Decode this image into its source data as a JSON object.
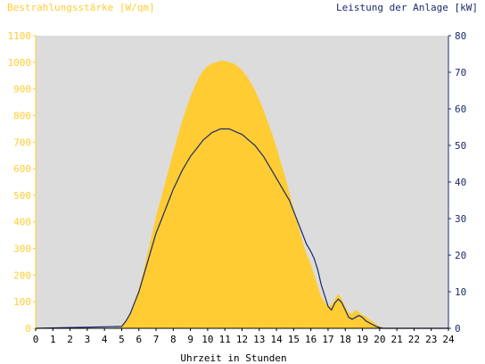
{
  "chart_data": {
    "type": "area",
    "left_axis_label": "Bestrahlungsstärke [W/qm]",
    "right_axis_label": "Leistung der Anlage [kW]",
    "xlabel": "Uhrzeit in Stunden",
    "xlim": [
      0,
      24
    ],
    "x_ticks": [
      "0",
      "1",
      "2",
      "3",
      "4",
      "5",
      "6",
      "7",
      "8",
      "9",
      "10",
      "11",
      "12",
      "13",
      "14",
      "15",
      "16",
      "17",
      "18",
      "19",
      "20",
      "21",
      "22",
      "23",
      "24"
    ],
    "left_ylim": [
      0,
      1100
    ],
    "left_ticks": [
      "0",
      "100",
      "200",
      "300",
      "400",
      "500",
      "600",
      "700",
      "800",
      "900",
      "1000",
      "1100"
    ],
    "right_ylim": [
      0,
      80
    ],
    "right_ticks": [
      "0",
      "10",
      "20",
      "30",
      "40",
      "50",
      "60",
      "70",
      "80"
    ],
    "grid": false,
    "colors": {
      "irradiance": "#ffcc33",
      "power": "#1a2a6c",
      "plot_background": "#dcdcdc"
    },
    "series": [
      {
        "axis": "left",
        "style": "area",
        "x": [
          0,
          4.8,
          5,
          5.25,
          5.5,
          5.75,
          6,
          6.25,
          6.5,
          6.75,
          7,
          7.25,
          7.5,
          7.75,
          8,
          8.25,
          8.5,
          8.75,
          9,
          9.25,
          9.5,
          9.75,
          10,
          10.25,
          10.5,
          10.75,
          11,
          11.25,
          11.5,
          11.75,
          12,
          12.25,
          12.5,
          12.75,
          13,
          13.25,
          13.5,
          13.75,
          14,
          14.25,
          14.5,
          14.75,
          15,
          15.25,
          15.5,
          15.75,
          16,
          16.2,
          16.4,
          16.6,
          16.8,
          17,
          17.2,
          17.4,
          17.6,
          17.8,
          18,
          18.2,
          18.4,
          18.6,
          18.8,
          19,
          19.2,
          19.4,
          19.6,
          19.8,
          20,
          20.2,
          20.4,
          24
        ],
        "values": [
          0,
          0,
          10,
          30,
          60,
          100,
          150,
          210,
          280,
          350,
          420,
          480,
          540,
          600,
          660,
          720,
          775,
          825,
          870,
          910,
          945,
          970,
          985,
          995,
          1000,
          1005,
          1005,
          1000,
          995,
          985,
          970,
          950,
          925,
          895,
          860,
          820,
          775,
          730,
          680,
          625,
          570,
          510,
          450,
          390,
          330,
          280,
          240,
          200,
          160,
          120,
          100,
          80,
          90,
          110,
          130,
          110,
          80,
          60,
          55,
          70,
          60,
          50,
          45,
          35,
          25,
          15,
          8,
          3,
          0,
          0
        ]
      },
      {
        "axis": "right",
        "style": "line",
        "x": [
          0,
          5,
          5.25,
          5.5,
          5.75,
          6,
          6.25,
          6.5,
          6.75,
          7,
          7.25,
          7.5,
          7.75,
          8,
          8.25,
          8.5,
          8.75,
          9,
          9.25,
          9.5,
          9.75,
          10,
          10.25,
          10.5,
          10.75,
          11,
          11.25,
          11.5,
          11.75,
          12,
          12.25,
          12.5,
          12.75,
          13,
          13.25,
          13.5,
          13.75,
          14,
          14.25,
          14.5,
          14.75,
          15,
          15.25,
          15.5,
          15.75,
          16,
          16.2,
          16.4,
          16.6,
          16.8,
          17,
          17.2,
          17.4,
          17.6,
          17.8,
          18,
          18.2,
          18.4,
          18.6,
          18.8,
          19,
          19.2,
          19.4,
          19.6,
          19.8,
          20,
          20.2,
          24
        ],
        "values": [
          0,
          0.5,
          2,
          4,
          7,
          10,
          14,
          18,
          22,
          26,
          29,
          32,
          35,
          38,
          40.5,
          43,
          45,
          47,
          48.5,
          50,
          51.5,
          52.5,
          53.5,
          54,
          54.5,
          54.5,
          54.5,
          54,
          53.5,
          53,
          52,
          51,
          50,
          48.5,
          47,
          45,
          43,
          41,
          39,
          37,
          35,
          32,
          29,
          26,
          23,
          21,
          19,
          16,
          12,
          9,
          6,
          5,
          7,
          8,
          7,
          5,
          3,
          2.5,
          3,
          3.5,
          3,
          2,
          1.5,
          1,
          0.5,
          0.2,
          0,
          0
        ]
      }
    ]
  }
}
